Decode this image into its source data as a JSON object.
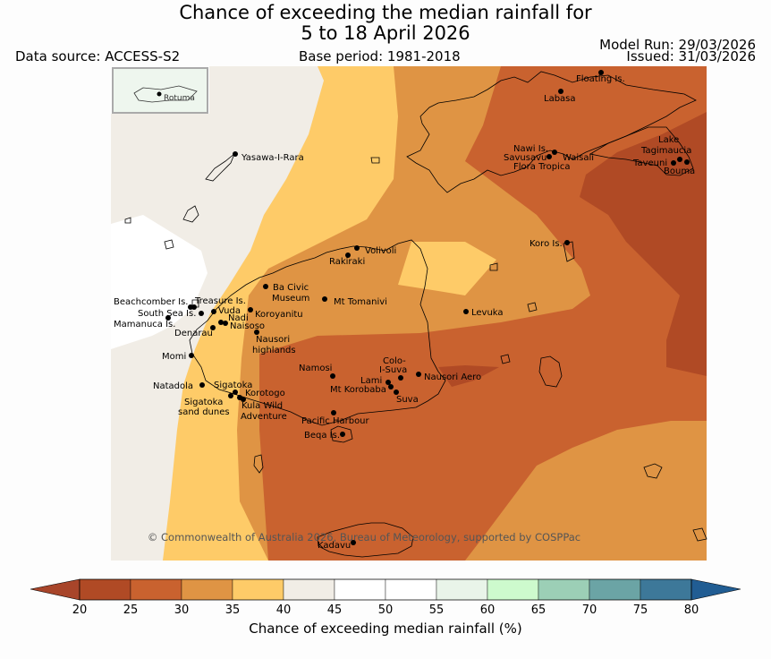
{
  "title": {
    "line1": "Chance of exceeding the median rainfall for",
    "line2": "5 to 18 April 2026"
  },
  "meta": {
    "data_source": "Data source: ACCESS-S2",
    "base_period": "Base period: 1981-2018",
    "model_run": "Model Run: 29/03/2026",
    "issued": "Issued: 31/03/2026"
  },
  "inset": {
    "label": "Rotuma"
  },
  "copyright": "© Commonwealth of Australia 2026, Bureau of Meteorology, supported by COSPPac",
  "places": [
    {
      "id": "floating",
      "name": "Floating Is."
    },
    {
      "id": "labasa",
      "name": "Labasa"
    },
    {
      "id": "nawi",
      "name": "Nawi Is."
    },
    {
      "id": "savusavu",
      "name": "Savusavu"
    },
    {
      "id": "waisali",
      "name": "Waisali"
    },
    {
      "id": "flora",
      "name": "Flora Tropica"
    },
    {
      "id": "lake",
      "name": "Lake"
    },
    {
      "id": "tagimaucia",
      "name": "Tagimaucia"
    },
    {
      "id": "taveuni",
      "name": "Taveuni"
    },
    {
      "id": "bouma",
      "name": "Bouma"
    },
    {
      "id": "yasawa",
      "name": "Yasawa-I-Rara"
    },
    {
      "id": "koro",
      "name": "Koro Is."
    },
    {
      "id": "volivoli",
      "name": "Volivoli"
    },
    {
      "id": "rakiraki",
      "name": "Rakiraki"
    },
    {
      "id": "bacivic",
      "name": "Ba Civic"
    },
    {
      "id": "museum",
      "name": "Museum"
    },
    {
      "id": "tomanivi",
      "name": "Mt Tomanivi"
    },
    {
      "id": "levuka",
      "name": "Levuka"
    },
    {
      "id": "beachcomber",
      "name": "Beachcomber Is."
    },
    {
      "id": "treasure",
      "name": "Treasure Is."
    },
    {
      "id": "southsea",
      "name": "South Sea Is."
    },
    {
      "id": "vuda",
      "name": "Vuda"
    },
    {
      "id": "koroyanitu",
      "name": "Koroyanitu"
    },
    {
      "id": "nadi",
      "name": "Nadi"
    },
    {
      "id": "mamanuca",
      "name": "Mamanuca Is."
    },
    {
      "id": "naisoso",
      "name": "Naisoso"
    },
    {
      "id": "denarau",
      "name": "Denarau"
    },
    {
      "id": "nausori_hl1",
      "name": "Nausori"
    },
    {
      "id": "nausori_hl2",
      "name": "highlands"
    },
    {
      "id": "momi",
      "name": "Momi"
    },
    {
      "id": "namosi",
      "name": "Namosi"
    },
    {
      "id": "colo1",
      "name": "Colo-"
    },
    {
      "id": "colo2",
      "name": "I-Suva"
    },
    {
      "id": "lami",
      "name": "Lami"
    },
    {
      "id": "nausori_aero",
      "name": "Nausori Aero"
    },
    {
      "id": "korobaba",
      "name": "Mt Korobaba"
    },
    {
      "id": "suva",
      "name": "Suva"
    },
    {
      "id": "natadola",
      "name": "Natadola"
    },
    {
      "id": "sigatoka",
      "name": "Sigatoka"
    },
    {
      "id": "korotogo",
      "name": "Korotogo"
    },
    {
      "id": "sig_dunes1",
      "name": "Sigatoka"
    },
    {
      "id": "sig_dunes2",
      "name": "sand dunes"
    },
    {
      "id": "kula1",
      "name": "Kula Wild"
    },
    {
      "id": "kula2",
      "name": "Adventure"
    },
    {
      "id": "pacific",
      "name": "Pacific Harbour"
    },
    {
      "id": "beqa",
      "name": "Beqa Is."
    },
    {
      "id": "kadavu",
      "name": "Kadavu"
    }
  ],
  "colorbar": {
    "ticks": [
      "20",
      "25",
      "30",
      "35",
      "40",
      "45",
      "50",
      "55",
      "60",
      "65",
      "70",
      "75",
      "80"
    ],
    "colors": [
      "#b04a25",
      "#c9622f",
      "#df9444",
      "#fecb68",
      "#f1ede6",
      "#ffffff",
      "#ffffff",
      "#e9f4e9",
      "#cdfacd",
      "#9ccfb6",
      "#6ba4a5",
      "#3d7899"
    ],
    "under_color": "#a8452a",
    "over_color": "#215d93",
    "label": "Chance of exceeding median rainfall (%)"
  },
  "zone_colors": {
    "c20": "#b04a25",
    "c25": "#c9622f",
    "c30": "#df9444",
    "c35": "#fecb68",
    "c40": "#f1ede6",
    "c45": "#ffffff"
  }
}
